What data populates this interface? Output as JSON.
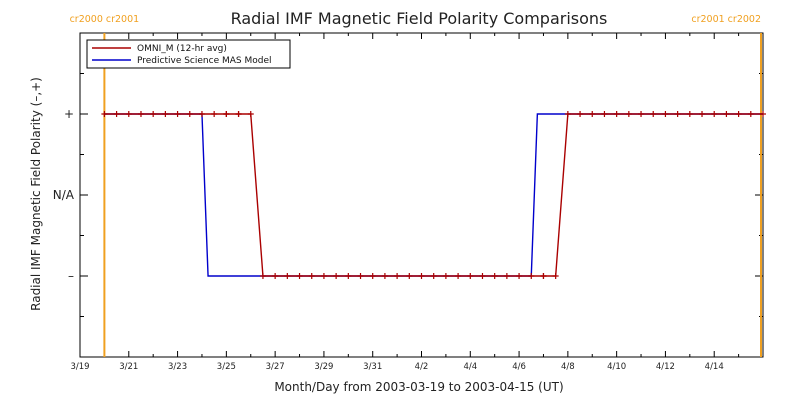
{
  "chart_data": {
    "type": "line",
    "title": "Radial IMF Magnetic Field Polarity Comparisons",
    "xlabel": "Month/Day from 2003-03-19 to 2003-04-15 (UT)",
    "ylabel": "Radial IMF Magnetic Field Polarity (–,+)",
    "xlim": [
      "2003-03-19",
      "2003-04-16"
    ],
    "x_tick_labels": [
      "3/19",
      "3/21",
      "3/23",
      "3/25",
      "3/27",
      "3/29",
      "3/31",
      "4/2",
      "4/4",
      "4/6",
      "4/8",
      "4/10",
      "4/12",
      "4/14"
    ],
    "y_categories": [
      "–",
      "N/A",
      "+"
    ],
    "y_values_map": {
      "+": 1,
      "N/A": 0,
      "–": -1
    },
    "ylim": [
      -2,
      2
    ],
    "legend_position": "top-left",
    "carrington_rotations": [
      {
        "date": "2003-03-20",
        "labels": [
          "cr2000",
          "cr2001"
        ]
      },
      {
        "date": "2003-04-16",
        "labels": [
          "cr2001",
          "cr2002"
        ]
      }
    ],
    "series": [
      {
        "name": "OMNI_M (12-hr avg)",
        "color": "#aa0000",
        "markers": true,
        "points": [
          [
            "2003-03-20",
            1
          ],
          [
            "2003-03-25",
            1
          ],
          [
            "2003-03-25 12:00",
            1
          ],
          [
            "2003-03-26",
            1
          ],
          [
            "2003-03-26 12:00",
            -1
          ],
          [
            "2003-04-07",
            -1
          ],
          [
            "2003-04-07 12:00",
            -1
          ],
          [
            "2003-04-08",
            1
          ],
          [
            "2003-04-16",
            1
          ]
        ]
      },
      {
        "name": "Predictive Science MAS Model",
        "color": "#0000cc",
        "markers": false,
        "points": [
          [
            "2003-03-20",
            1
          ],
          [
            "2003-03-24",
            1
          ],
          [
            "2003-03-24 06:00",
            -1
          ],
          [
            "2003-04-06 12:00",
            -1
          ],
          [
            "2003-04-06 18:00",
            1
          ],
          [
            "2003-04-16",
            1
          ]
        ]
      }
    ]
  }
}
